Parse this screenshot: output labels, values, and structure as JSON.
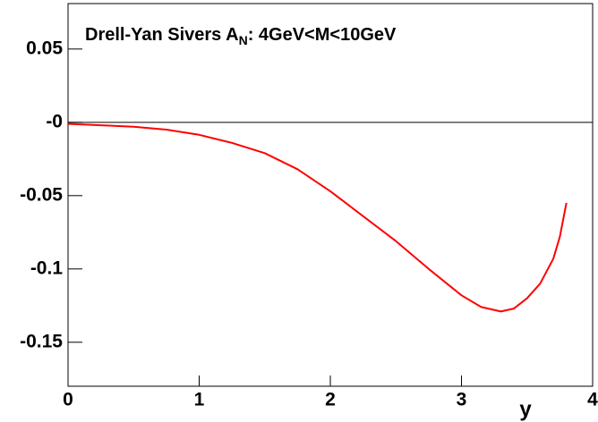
{
  "chart_data": {
    "type": "line",
    "title": [
      "Drell-Yan Sivers A",
      "N",
      ":  4GeV<M<10GeV"
    ],
    "xlabel": "y",
    "x": [
      0,
      0.25,
      0.5,
      0.75,
      1.0,
      1.25,
      1.5,
      1.75,
      2.0,
      2.25,
      2.5,
      2.75,
      3.0,
      3.15,
      3.3,
      3.4,
      3.5,
      3.6,
      3.7,
      3.75,
      3.8
    ],
    "series": [
      {
        "color": "#ff0000",
        "values": [
          -0.001,
          -0.002,
          -0.003,
          -0.005,
          -0.0085,
          -0.014,
          -0.021,
          -0.032,
          -0.047,
          -0.064,
          -0.081,
          -0.1,
          -0.118,
          -0.126,
          -0.129,
          -0.127,
          -0.12,
          -0.11,
          -0.093,
          -0.078,
          -0.055
        ]
      }
    ],
    "xlim": [
      0,
      4
    ],
    "xticks": [
      0,
      1,
      2,
      3,
      4
    ],
    "ylim": [
      -0.18,
      0.081
    ],
    "yticks": [
      {
        "value": -0.15,
        "label": "-0.15"
      },
      {
        "value": -0.1,
        "label": "-0.1"
      },
      {
        "value": -0.05,
        "label": "-0.05"
      },
      {
        "value": 0,
        "label": "-0"
      },
      {
        "value": 0.05,
        "label": "0.05"
      }
    ]
  }
}
